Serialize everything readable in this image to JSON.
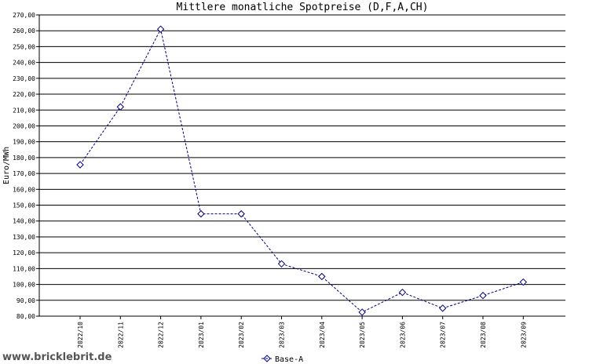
{
  "site": "www.bricklebrit.de",
  "chart_data": {
    "type": "line",
    "title": "Mittlere monatliche Spotpreise (D,F,A,CH)",
    "ylabel": "Euro/MWh",
    "xlabel": "",
    "ylim": [
      80,
      270
    ],
    "yticks": [
      "80,00",
      "90,00",
      "100,00",
      "110,00",
      "120,00",
      "130,00",
      "140,00",
      "150,00",
      "160,00",
      "170,00",
      "180,00",
      "190,00",
      "200,00",
      "210,00",
      "220,00",
      "230,00",
      "240,00",
      "250,00",
      "260,00",
      "270,00"
    ],
    "categories": [
      "2022/10",
      "2022/11",
      "2022/12",
      "2023/01",
      "2023/02",
      "2023/03",
      "2023/04",
      "2023/05",
      "2023/06",
      "2023/07",
      "2023/08",
      "2023/09"
    ],
    "grid": true,
    "legend": "bottom-center",
    "series": [
      {
        "name": "Base-A",
        "color": "#000080",
        "marker": "diamond-icon",
        "values": [
          175.5,
          212,
          261,
          144.5,
          144.5,
          113,
          105,
          82.5,
          95,
          85,
          93,
          101.5
        ]
      }
    ]
  }
}
